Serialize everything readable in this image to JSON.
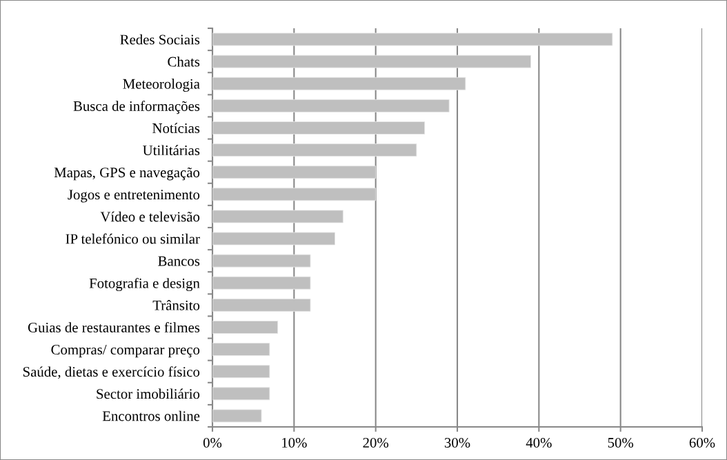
{
  "chart_data": {
    "type": "bar",
    "orientation": "horizontal",
    "categories": [
      "Redes Sociais",
      "Chats",
      "Meteorologia",
      "Busca de informações",
      "Notícias",
      "Utilitárias",
      "Mapas, GPS e navegação",
      "Jogos e entretenimento",
      "Vídeo e televisão",
      "IP telefónico ou similar",
      "Bancos",
      "Fotografia e design",
      "Trânsito",
      "Guias de restaurantes e filmes",
      "Compras/ comparar preço",
      "Saúde, dietas e exercício físico",
      "Sector imobiliário",
      "Encontros online"
    ],
    "values": [
      49,
      39,
      31,
      29,
      26,
      25,
      20,
      20,
      16,
      15,
      12,
      12,
      12,
      8,
      7,
      7,
      7,
      6
    ],
    "color": "#bfbfbf",
    "xlim": [
      0,
      60
    ],
    "xticks": [
      {
        "value": 0,
        "label": "0%"
      },
      {
        "value": 10,
        "label": "10%"
      },
      {
        "value": 20,
        "label": "20%"
      },
      {
        "value": 30,
        "label": "30%"
      },
      {
        "value": 40,
        "label": "40%"
      },
      {
        "value": 50,
        "label": "50%"
      },
      {
        "value": 60,
        "label": "60%"
      }
    ],
    "grid": "x"
  }
}
